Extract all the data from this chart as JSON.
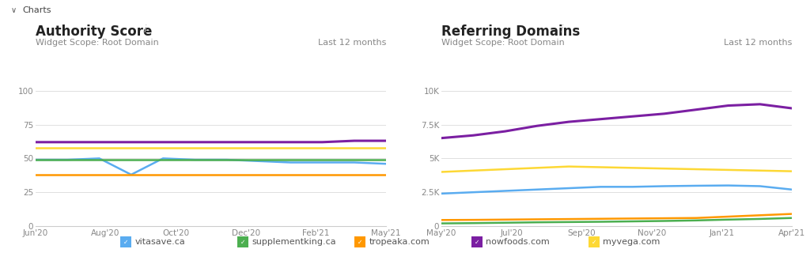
{
  "bg_color": "#f0f0f0",
  "chart_bg": "#ffffff",
  "header_text": "Charts",
  "header_bg": "#e0e0e0",
  "left_title": "Authority Score",
  "left_title_i": "i",
  "left_subtitle": "Widget Scope: Root Domain",
  "left_time_label": "Last 12 months",
  "left_x_labels": [
    "Jun'20",
    "Aug'20",
    "Oct'20",
    "Dec'20",
    "Feb'21",
    "May'21"
  ],
  "left_y_ticks": [
    0,
    25,
    50,
    75,
    100
  ],
  "left_ylim": [
    0,
    108
  ],
  "right_title": "Referring Domains",
  "right_title_i": "i",
  "right_subtitle": "Widget Scope: Root Domain",
  "right_time_label": "Last 12 months",
  "right_x_labels": [
    "May'20",
    "Jul'20",
    "Sep'20",
    "Nov'20",
    "Jan'21",
    "Apr'21"
  ],
  "right_y_ticks": [
    0,
    2500,
    5000,
    7500,
    10000
  ],
  "right_y_tick_labels": [
    "0",
    "2.5K",
    "5K",
    "7.5K",
    "10K"
  ],
  "right_ylim": [
    0,
    10800
  ],
  "colors": {
    "vitasave": "#5aacf0",
    "supplementking": "#4caf50",
    "tropeaka": "#ff9800",
    "nowfoods": "#7b1fa2",
    "myvega": "#fdd835"
  },
  "left_series": {
    "vitasave": [
      49,
      49,
      50,
      38,
      50,
      49,
      49,
      48,
      47,
      47,
      47,
      46
    ],
    "supplementking": [
      49,
      49,
      49,
      49,
      49,
      49,
      49,
      49,
      49,
      49,
      49,
      49
    ],
    "tropeaka": [
      38,
      38,
      38,
      38,
      38,
      38,
      38,
      38,
      38,
      38,
      38,
      38
    ],
    "nowfoods": [
      62,
      62,
      62,
      62,
      62,
      62,
      62,
      62,
      62,
      62,
      63,
      63
    ],
    "myvega": [
      58,
      58,
      58,
      58,
      58,
      58,
      58,
      58,
      58,
      58,
      58,
      58
    ]
  },
  "right_series": {
    "vitasave": [
      2400,
      2500,
      2600,
      2700,
      2800,
      2900,
      2900,
      2950,
      2980,
      3000,
      2950,
      2700
    ],
    "supplementking": [
      200,
      220,
      250,
      280,
      300,
      320,
      350,
      380,
      420,
      480,
      530,
      600
    ],
    "tropeaka": [
      450,
      460,
      480,
      500,
      520,
      540,
      560,
      580,
      600,
      700,
      800,
      900
    ],
    "nowfoods": [
      6500,
      6700,
      7000,
      7400,
      7700,
      7900,
      8100,
      8300,
      8600,
      8900,
      9000,
      8700
    ],
    "myvega": [
      4000,
      4100,
      4200,
      4300,
      4400,
      4350,
      4300,
      4250,
      4200,
      4150,
      4100,
      4050
    ]
  },
  "legend_items": [
    {
      "label": "vitasave.ca",
      "color": "#5aacf0"
    },
    {
      "label": "supplementking.ca",
      "color": "#4caf50"
    },
    {
      "label": "tropeaka.com",
      "color": "#ff9800"
    },
    {
      "label": "nowfoods.com",
      "color": "#7b1fa2"
    },
    {
      "label": "myvega.com",
      "color": "#fdd835"
    }
  ],
  "series_order": [
    "vitasave",
    "supplementking",
    "tropeaka",
    "nowfoods",
    "myvega"
  ]
}
